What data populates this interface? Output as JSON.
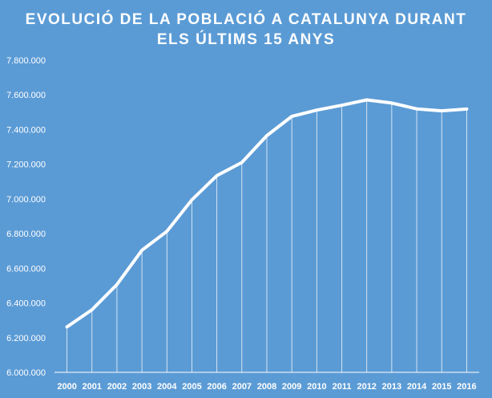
{
  "chart_data": {
    "type": "line",
    "title_lines": [
      "EVOLUCIÓ DE LA POBLACIÓ A CATALUNYA  DURANT",
      "ELS ÚLTIMS 15 ANYS"
    ],
    "categories": [
      "2000",
      "2001",
      "2002",
      "2003",
      "2004",
      "2005",
      "2006",
      "2007",
      "2008",
      "2009",
      "2010",
      "2011",
      "2012",
      "2013",
      "2014",
      "2015",
      "2016"
    ],
    "values": [
      6262000,
      6361000,
      6506000,
      6704000,
      6813000,
      6995000,
      7134000,
      7210000,
      7365000,
      7476000,
      7512000,
      7540000,
      7571000,
      7553000,
      7519000,
      7508000,
      7518000
    ],
    "y_ticks": [
      "6.000.000",
      "6.200.000",
      "6.400.000",
      "6.600.000",
      "6.800.000",
      "7.000.000",
      "7.200.000",
      "7.400.000",
      "7.600.000",
      "7.800.000"
    ],
    "ylim": [
      6000000,
      7800000
    ],
    "xlabel": "",
    "ylabel": "",
    "drop_lines": true,
    "grid": false,
    "colors": {
      "background": "#5b9bd5",
      "line": "#ffffff",
      "text": "#ffffff"
    }
  }
}
